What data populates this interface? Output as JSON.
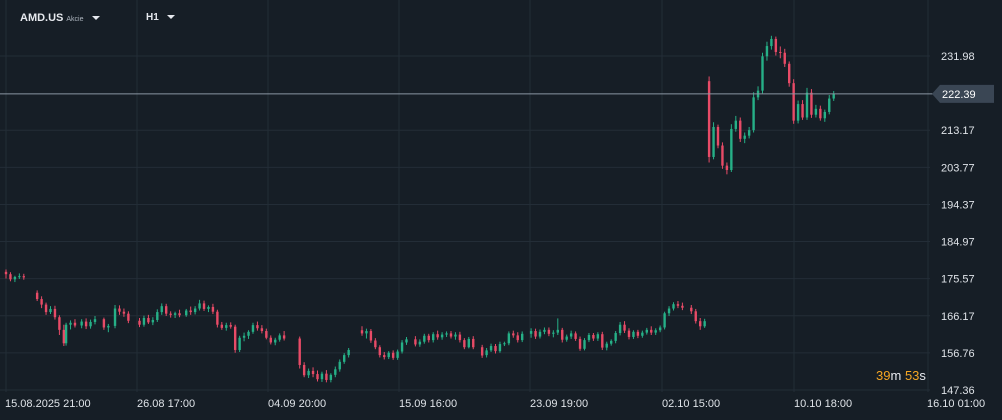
{
  "header": {
    "symbol": "AMD.US",
    "symbol_type": "Akcie",
    "timeframe": "H1"
  },
  "countdown": {
    "minutes": "39",
    "minutes_unit": "m",
    "seconds": "53",
    "seconds_unit": "s"
  },
  "colors": {
    "background": "#161e26",
    "grid": "#232d37",
    "up": "#26b087",
    "down": "#e84b67",
    "text": "#dfe3e8",
    "price_label_bg": "#3a4654",
    "price_line": "#8a96a2"
  },
  "chart_data": {
    "type": "candlestick",
    "current_price": 222.39,
    "current_price_label": "222.39",
    "y_ticks": [
      "231.98",
      "213.17",
      "203.77",
      "194.37",
      "184.97",
      "175.57",
      "166.17",
      "156.76",
      "147.36"
    ],
    "y_tick_values": [
      231.98,
      213.17,
      203.77,
      194.37,
      184.97,
      175.57,
      166.17,
      156.76,
      147.36
    ],
    "x_ticks": [
      "15.08.2025  21:00",
      "26.08  17:00",
      "04.09  20:00",
      "15.09  16:00",
      "23.09  19:00",
      "02.10  15:00",
      "10.10  18:00",
      "16.10  01:00"
    ],
    "grid": true,
    "candles": [
      [
        177.3,
        177.9,
        175.6,
        176.7
      ],
      [
        176.7,
        177.2,
        174.9,
        175.4
      ],
      [
        175.4,
        176.3,
        174.7,
        176.0
      ],
      [
        176.0,
        176.9,
        175.5,
        176.2
      ],
      [
        176.2,
        176.8,
        175.3,
        175.9
      ],
      [
        172.0,
        172.6,
        169.9,
        170.4
      ],
      [
        170.4,
        171.1,
        168.1,
        169.0
      ],
      [
        169.0,
        169.5,
        166.4,
        167.1
      ],
      [
        167.1,
        168.6,
        166.6,
        167.9
      ],
      [
        167.9,
        168.7,
        165.2,
        165.8
      ],
      [
        165.8,
        166.3,
        161.3,
        162.6
      ],
      [
        162.6,
        163.9,
        158.5,
        159.2
      ],
      [
        159.2,
        164.4,
        158.6,
        163.9
      ],
      [
        163.9,
        165.0,
        162.7,
        164.4
      ],
      [
        164.4,
        165.3,
        163.2,
        163.7
      ],
      [
        163.7,
        165.3,
        163.0,
        164.7
      ],
      [
        164.7,
        165.5,
        162.8,
        163.5
      ],
      [
        163.5,
        165.2,
        162.9,
        164.6
      ],
      [
        164.6,
        166.1,
        164.0,
        165.3
      ],
      [
        165.3,
        165.7,
        162.6,
        163.2
      ],
      [
        163.2,
        164.1,
        162.0,
        163.6
      ],
      [
        163.6,
        168.9,
        163.0,
        168.0
      ],
      [
        168.0,
        168.8,
        166.4,
        167.2
      ],
      [
        167.2,
        168.0,
        165.9,
        166.7
      ],
      [
        166.7,
        167.3,
        164.3,
        164.9
      ],
      [
        164.9,
        165.6,
        163.3,
        163.9
      ],
      [
        163.9,
        166.2,
        163.4,
        165.6
      ],
      [
        165.6,
        166.4,
        164.1,
        164.5
      ],
      [
        164.5,
        165.8,
        163.8,
        165.1
      ],
      [
        165.1,
        167.8,
        164.6,
        167.1
      ],
      [
        167.1,
        169.3,
        166.4,
        168.6
      ],
      [
        168.6,
        169.2,
        166.1,
        166.7
      ],
      [
        166.7,
        167.3,
        165.7,
        166.4
      ],
      [
        166.4,
        167.2,
        165.6,
        166.8
      ],
      [
        166.8,
        167.7,
        165.8,
        166.3
      ],
      [
        166.3,
        167.9,
        165.9,
        167.5
      ],
      [
        167.5,
        168.5,
        166.4,
        167.1
      ],
      [
        167.1,
        168.6,
        166.5,
        168.0
      ],
      [
        168.0,
        170.2,
        167.5,
        169.3
      ],
      [
        169.3,
        170.0,
        167.4,
        167.9
      ],
      [
        167.9,
        168.8,
        167.1,
        168.4
      ],
      [
        168.4,
        169.2,
        166.6,
        167.2
      ],
      [
        167.2,
        167.7,
        163.2,
        163.9
      ],
      [
        163.9,
        164.6,
        162.6,
        163.1
      ],
      [
        163.1,
        164.4,
        162.4,
        163.8
      ],
      [
        163.8,
        164.5,
        162.9,
        163.4
      ],
      [
        163.4,
        163.9,
        156.8,
        157.5
      ],
      [
        157.5,
        161.1,
        157.0,
        160.6
      ],
      [
        160.6,
        161.9,
        159.7,
        161.1
      ],
      [
        161.1,
        162.5,
        160.3,
        162.1
      ],
      [
        162.1,
        164.4,
        161.6,
        163.8
      ],
      [
        163.8,
        164.7,
        162.4,
        163.0
      ],
      [
        163.0,
        163.8,
        161.7,
        162.3
      ],
      [
        162.3,
        162.9,
        160.2,
        160.6
      ],
      [
        160.6,
        161.2,
        158.9,
        159.4
      ],
      [
        159.4,
        160.6,
        158.7,
        160.1
      ],
      [
        160.1,
        161.7,
        159.6,
        161.2
      ],
      [
        161.2,
        162.3,
        159.9,
        160.4
      ],
      [
        160.4,
        160.9,
        152.8,
        153.7
      ],
      [
        153.7,
        154.4,
        150.6,
        151.1
      ],
      [
        151.1,
        152.8,
        150.4,
        152.2
      ],
      [
        152.2,
        153.1,
        150.6,
        151.4
      ],
      [
        151.4,
        152.3,
        149.5,
        150.1
      ],
      [
        150.1,
        152.0,
        149.4,
        151.5
      ],
      [
        151.5,
        152.4,
        149.3,
        149.9
      ],
      [
        149.9,
        151.6,
        149.3,
        151.2
      ],
      [
        151.2,
        153.3,
        150.6,
        152.6
      ],
      [
        152.6,
        155.1,
        152.0,
        154.5
      ],
      [
        154.5,
        156.7,
        154.0,
        156.2
      ],
      [
        156.2,
        158.0,
        155.6,
        157.5
      ],
      [
        162.5,
        163.5,
        161.1,
        161.7
      ],
      [
        161.7,
        162.9,
        160.4,
        162.3
      ],
      [
        162.3,
        162.8,
        159.3,
        159.9
      ],
      [
        159.9,
        160.5,
        157.7,
        158.2
      ],
      [
        158.2,
        158.7,
        155.6,
        156.2
      ],
      [
        156.2,
        157.0,
        155.1,
        155.7
      ],
      [
        155.7,
        157.2,
        155.2,
        156.8
      ],
      [
        156.8,
        157.4,
        155.0,
        155.5
      ],
      [
        155.5,
        157.6,
        155.0,
        157.1
      ],
      [
        157.1,
        160.0,
        156.6,
        159.4
      ],
      [
        159.4,
        160.8,
        158.8,
        160.2
      ],
      [
        160.2,
        161.0,
        158.4,
        158.9
      ],
      [
        158.9,
        160.2,
        158.3,
        159.6
      ],
      [
        159.6,
        161.6,
        159.1,
        161.1
      ],
      [
        161.1,
        161.6,
        159.4,
        160.0
      ],
      [
        160.0,
        162.0,
        159.4,
        161.5
      ],
      [
        161.5,
        162.4,
        160.1,
        160.7
      ],
      [
        160.7,
        162.0,
        160.1,
        161.4
      ],
      [
        161.4,
        162.2,
        160.8,
        161.7
      ],
      [
        161.7,
        162.3,
        160.4,
        160.9
      ],
      [
        160.9,
        162.0,
        160.1,
        161.4
      ],
      [
        161.4,
        162.1,
        159.4,
        160.0
      ],
      [
        160.0,
        160.5,
        157.7,
        158.2
      ],
      [
        158.2,
        160.8,
        157.9,
        160.3
      ],
      [
        160.3,
        161.0,
        157.7,
        158.2
      ],
      [
        158.2,
        158.8,
        155.5,
        156.1
      ],
      [
        156.2,
        158.0,
        155.6,
        157.4
      ],
      [
        157.4,
        159.1,
        157.0,
        158.5
      ],
      [
        158.5,
        159.0,
        156.6,
        157.2
      ],
      [
        157.2,
        159.6,
        156.8,
        159.0
      ],
      [
        159.0,
        159.6,
        158.5,
        159.2
      ],
      [
        159.2,
        162.2,
        158.7,
        161.7
      ],
      [
        161.7,
        162.4,
        160.6,
        161.2
      ],
      [
        161.2,
        162.0,
        159.4,
        160.0
      ],
      [
        160.0,
        162.2,
        159.5,
        161.6
      ],
      [
        161.6,
        163.0,
        160.6,
        162.3
      ],
      [
        162.3,
        162.9,
        160.3,
        160.9
      ],
      [
        160.9,
        162.7,
        160.4,
        162.1
      ],
      [
        162.1,
        163.2,
        161.5,
        162.6
      ],
      [
        162.6,
        163.2,
        161.0,
        161.6
      ],
      [
        161.6,
        162.5,
        160.7,
        161.9
      ],
      [
        161.9,
        165.5,
        161.3,
        162.6
      ],
      [
        162.6,
        163.1,
        159.4,
        160.1
      ],
      [
        160.1,
        161.4,
        159.6,
        160.9
      ],
      [
        160.9,
        162.4,
        160.3,
        161.7
      ],
      [
        161.7,
        162.2,
        159.8,
        160.3
      ],
      [
        160.3,
        160.9,
        157.3,
        157.8
      ],
      [
        157.8,
        160.5,
        157.4,
        160.0
      ],
      [
        160.0,
        161.8,
        159.5,
        161.3
      ],
      [
        161.3,
        161.8,
        159.8,
        160.4
      ],
      [
        160.4,
        162.0,
        159.8,
        161.5
      ],
      [
        161.5,
        162.1,
        157.5,
        158.1
      ],
      [
        158.1,
        159.6,
        157.4,
        159.1
      ],
      [
        159.1,
        160.2,
        158.6,
        159.8
      ],
      [
        159.8,
        162.3,
        159.2,
        161.8
      ],
      [
        161.8,
        164.6,
        161.2,
        163.9
      ],
      [
        163.9,
        164.8,
        161.8,
        162.4
      ],
      [
        162.4,
        163.0,
        160.2,
        160.8
      ],
      [
        160.8,
        162.5,
        160.3,
        162.1
      ],
      [
        162.1,
        162.6,
        160.5,
        161.1
      ],
      [
        161.1,
        162.4,
        160.6,
        161.9
      ],
      [
        161.9,
        163.1,
        161.4,
        162.6
      ],
      [
        162.6,
        163.5,
        161.3,
        161.9
      ],
      [
        161.9,
        163.0,
        161.3,
        162.5
      ],
      [
        162.5,
        163.7,
        162.0,
        163.2
      ],
      [
        163.2,
        167.2,
        162.7,
        166.8
      ],
      [
        166.8,
        168.6,
        166.1,
        168.0
      ],
      [
        168.0,
        169.6,
        167.5,
        169.1
      ],
      [
        169.1,
        169.9,
        168.1,
        168.7
      ],
      [
        168.7,
        169.5,
        167.6,
        168.2
      ],
      [
        168.2,
        168.9,
        166.6,
        167.3
      ],
      [
        167.3,
        167.9,
        164.2,
        164.8
      ],
      [
        164.8,
        165.6,
        162.6,
        163.5
      ],
      [
        163.5,
        165.4,
        163.1,
        164.8
      ],
      [
        225.6,
        226.8,
        205.0,
        206.4
      ],
      [
        206.4,
        215.2,
        205.8,
        214.0
      ],
      [
        214.0,
        214.6,
        208.6,
        209.3
      ],
      [
        209.3,
        210.1,
        203.4,
        204.2
      ],
      [
        204.2,
        205.0,
        202.0,
        203.1
      ],
      [
        203.1,
        214.7,
        202.6,
        213.5
      ],
      [
        213.5,
        216.8,
        212.8,
        215.6
      ],
      [
        215.6,
        216.4,
        210.2,
        211.0
      ],
      [
        211.0,
        212.6,
        209.9,
        211.8
      ],
      [
        211.8,
        214.0,
        211.1,
        213.2
      ],
      [
        213.2,
        222.8,
        212.6,
        221.5
      ],
      [
        221.5,
        224.3,
        220.8,
        223.2
      ],
      [
        223.2,
        232.8,
        222.5,
        231.9
      ],
      [
        231.9,
        235.6,
        230.8,
        234.5
      ],
      [
        234.5,
        237.1,
        233.6,
        236.3
      ],
      [
        236.3,
        236.9,
        232.1,
        233.0
      ],
      [
        233.0,
        234.4,
        231.4,
        232.8
      ],
      [
        232.8,
        233.8,
        229.2,
        230.0
      ],
      [
        230.0,
        230.6,
        224.2,
        225.1
      ],
      [
        225.1,
        226.1,
        214.8,
        215.6
      ],
      [
        215.6,
        220.7,
        214.9,
        219.8
      ],
      [
        219.8,
        220.8,
        215.8,
        216.4
      ],
      [
        216.4,
        223.9,
        215.8,
        222.7
      ],
      [
        222.7,
        223.6,
        216.3,
        217.1
      ],
      [
        217.1,
        219.6,
        216.4,
        218.6
      ],
      [
        218.6,
        219.4,
        215.6,
        216.2
      ],
      [
        216.2,
        218.4,
        215.3,
        217.8
      ],
      [
        217.8,
        222.1,
        217.2,
        221.2
      ],
      [
        221.2,
        223.1,
        220.6,
        222.4
      ]
    ],
    "candle_times": [
      0,
      1,
      2,
      3,
      4,
      7,
      8,
      9,
      10,
      11,
      12,
      13,
      13.5,
      14.5,
      15.5,
      17,
      18,
      19,
      20,
      22,
      23,
      24.5,
      25.5,
      26.5,
      27.5,
      30,
      31,
      32,
      33,
      34,
      35,
      36,
      37,
      38,
      39,
      40.5,
      41.5,
      42.5,
      43.5,
      44.5,
      45.5,
      46.5,
      47.5,
      48.5,
      49.5,
      50.5,
      51.5,
      52.5,
      53.5,
      54.5,
      55.5,
      56.5,
      57.5,
      58.5,
      59.5,
      60.5,
      61.5,
      62.5,
      66,
      67,
      68,
      69,
      70,
      71,
      72,
      73,
      74,
      75,
      76,
      77,
      80,
      81,
      82,
      83,
      84,
      85,
      86,
      87,
      88,
      89,
      90,
      92,
      93,
      94,
      95,
      96,
      97,
      98,
      99,
      100,
      101,
      102,
      103,
      104,
      105,
      107,
      108,
      109,
      110,
      111,
      112,
      113,
      114,
      115,
      116,
      118,
      119,
      120,
      121,
      122,
      123,
      124,
      125,
      126,
      127,
      128,
      129,
      130,
      131,
      132,
      133,
      134,
      135,
      136,
      137,
      138,
      139,
      140,
      141,
      142,
      143,
      144,
      145,
      146,
      147,
      148,
      149,
      150,
      151,
      152,
      154,
      155,
      156,
      157,
      158,
      159,
      160,
      161,
      162,
      163,
      164,
      165,
      166,
      167,
      168,
      169,
      170,
      171,
      172,
      173,
      174,
      175,
      176,
      177,
      178,
      179,
      180,
      181,
      182,
      183,
      184,
      185,
      186
    ]
  }
}
